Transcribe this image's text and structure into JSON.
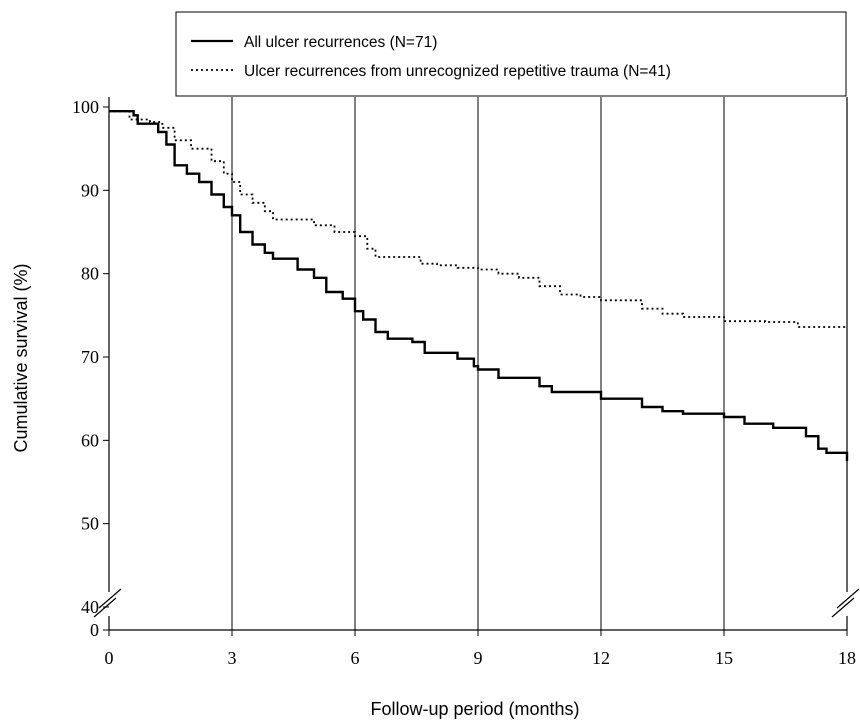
{
  "chart_data": {
    "type": "line",
    "xlabel": "Follow-up period (months)",
    "ylabel": "Cumulative survival (%)",
    "xlim": [
      0,
      18
    ],
    "ylim": [
      40,
      100
    ],
    "y_axis_break": true,
    "x_ticks": [
      0,
      3,
      6,
      9,
      12,
      15,
      18
    ],
    "x_tick_labels": [
      "0",
      "3",
      "6",
      "9",
      "12",
      "15",
      "18"
    ],
    "y_ticks": [
      40,
      50,
      60,
      70,
      80,
      90,
      100
    ],
    "y_tick_labels": [
      "40",
      "50",
      "60",
      "70",
      "80",
      "90",
      "100"
    ],
    "y_origin_label": "0",
    "grid": "vertical lines at x ticks",
    "legend_position": "top",
    "series": [
      {
        "name": "All ulcer recurrences (N=71)",
        "style": "solid",
        "points": [
          [
            0,
            99.5
          ],
          [
            0.6,
            99
          ],
          [
            0.7,
            98
          ],
          [
            1.2,
            97
          ],
          [
            1.4,
            95.5
          ],
          [
            1.6,
            93
          ],
          [
            1.8,
            93
          ],
          [
            1.9,
            92
          ],
          [
            2.2,
            91
          ],
          [
            2.5,
            89.5
          ],
          [
            2.8,
            88
          ],
          [
            3.0,
            87
          ],
          [
            3.2,
            85
          ],
          [
            3.5,
            83.5
          ],
          [
            3.8,
            82.5
          ],
          [
            4.0,
            81.8
          ],
          [
            4.5,
            81.8
          ],
          [
            4.6,
            80.5
          ],
          [
            5.0,
            79.5
          ],
          [
            5.3,
            77.8
          ],
          [
            5.7,
            77
          ],
          [
            6.0,
            75.5
          ],
          [
            6.2,
            74.5
          ],
          [
            6.5,
            73
          ],
          [
            6.8,
            72.2
          ],
          [
            7.4,
            71.8
          ],
          [
            7.7,
            70.5
          ],
          [
            8.5,
            69.8
          ],
          [
            8.9,
            68.9
          ],
          [
            9.0,
            68.5
          ],
          [
            9.5,
            67.5
          ],
          [
            10.5,
            66.5
          ],
          [
            10.8,
            65.8
          ],
          [
            12,
            65
          ],
          [
            13,
            64
          ],
          [
            13.5,
            63.5
          ],
          [
            14,
            63.2
          ],
          [
            15,
            62.8
          ],
          [
            15.5,
            62
          ],
          [
            16.2,
            61.5
          ],
          [
            16.8,
            61.5
          ],
          [
            17,
            60.5
          ],
          [
            17.3,
            59
          ],
          [
            17.5,
            58.5
          ],
          [
            17.9,
            58.5
          ],
          [
            18,
            57.5
          ]
        ]
      },
      {
        "name": "Ulcer recurrences from unrecognized repetitive trauma (N=41)",
        "style": "dotted",
        "points": [
          [
            0,
            99.5
          ],
          [
            0.5,
            98.5
          ],
          [
            1.0,
            98.2
          ],
          [
            1.3,
            97.5
          ],
          [
            1.6,
            96
          ],
          [
            2.0,
            95
          ],
          [
            2.5,
            93.5
          ],
          [
            2.8,
            92
          ],
          [
            3.0,
            91
          ],
          [
            3.2,
            89.5
          ],
          [
            3.5,
            88.5
          ],
          [
            3.8,
            87.5
          ],
          [
            4.0,
            86.5
          ],
          [
            4.5,
            86.5
          ],
          [
            5.0,
            85.8
          ],
          [
            5.5,
            85
          ],
          [
            6.0,
            84.5
          ],
          [
            6.3,
            83
          ],
          [
            6.5,
            82
          ],
          [
            7.5,
            82
          ],
          [
            7.6,
            81.2
          ],
          [
            8.0,
            81
          ],
          [
            8.5,
            80.7
          ],
          [
            9.0,
            80.5
          ],
          [
            9.5,
            80
          ],
          [
            10.0,
            79.5
          ],
          [
            10.5,
            78.5
          ],
          [
            11.0,
            77.5
          ],
          [
            11.5,
            77.2
          ],
          [
            12,
            76.8
          ],
          [
            13,
            75.8
          ],
          [
            13.5,
            75.2
          ],
          [
            14,
            74.8
          ],
          [
            15,
            74.3
          ],
          [
            16,
            74.2
          ],
          [
            16.6,
            74.2
          ],
          [
            16.8,
            73.6
          ],
          [
            18,
            73.6
          ]
        ]
      }
    ]
  }
}
